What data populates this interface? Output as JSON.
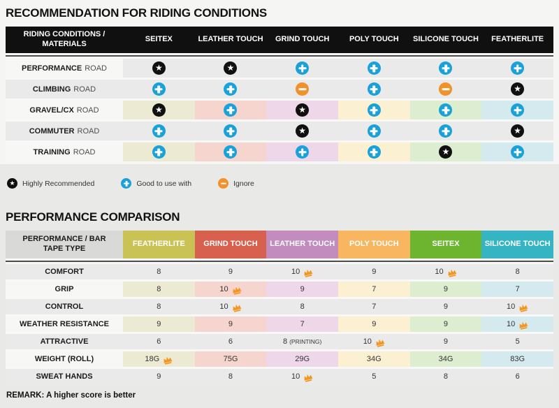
{
  "section1": {
    "title": "RECOMMENDATION FOR RIDING CONDITIONS",
    "table": {
      "header_label": "RIDING CONDITIONS / MATERIALS",
      "columns": [
        "SEITEX",
        "LEATHER TOUCH",
        "GRIND TOUCH",
        "POLY TOUCH",
        "SILICONE TOUCH",
        "FEATHERLITE"
      ],
      "column_tints": [
        "#edead3",
        "#f5d5cd",
        "#edd7e9",
        "#fcf0d2",
        "#ddedd0",
        "#d5eaee"
      ],
      "rows": [
        {
          "activity": "PERFORMANCE",
          "suffix": "ROAD",
          "tinted": false,
          "cells": [
            "star",
            "star",
            "plus",
            "plus",
            "plus",
            "plus"
          ]
        },
        {
          "activity": "CLIMBING",
          "suffix": "ROAD",
          "tinted": false,
          "cells": [
            "plus",
            "plus",
            "minus",
            "plus",
            "minus",
            "star"
          ]
        },
        {
          "activity": "GRAVEL/CX",
          "suffix": "ROAD",
          "tinted": true,
          "cells": [
            "star",
            "plus",
            "star",
            "plus",
            "plus",
            "plus"
          ]
        },
        {
          "activity": "COMMUTER",
          "suffix": "ROAD",
          "tinted": false,
          "cells": [
            "plus",
            "plus",
            "star",
            "plus",
            "plus",
            "star"
          ]
        },
        {
          "activity": "TRAINING",
          "suffix": "ROAD",
          "tinted": true,
          "cells": [
            "plus",
            "plus",
            "plus",
            "plus",
            "star",
            "plus"
          ]
        }
      ]
    },
    "legend": [
      {
        "icon": "star",
        "label": "Highly Recommended"
      },
      {
        "icon": "plus",
        "label": "Good to use with"
      },
      {
        "icon": "minus",
        "label": "Ignore"
      }
    ]
  },
  "section2": {
    "title": "PERFORMANCE COMPARISON",
    "table": {
      "header_label": "PERFORMANCE / BAR TAPE TYPE",
      "columns": [
        {
          "name": "FEATHERLITE",
          "color": "#c9c254",
          "tint": "#edead3"
        },
        {
          "name": "GRIND TOUCH",
          "color": "#d8604e",
          "tint": "#f5d5cd"
        },
        {
          "name": "LEATHER TOUCH",
          "color": "#c28dbe",
          "tint": "#edd7e9"
        },
        {
          "name": "POLY TOUCH",
          "color": "#f7b65f",
          "tint": "#fcf0d2"
        },
        {
          "name": "SEITEX",
          "color": "#6db52f",
          "tint": "#ddedd0"
        },
        {
          "name": "SILICONE TOUCH",
          "color": "#35b4c3",
          "tint": "#d5eaee"
        }
      ],
      "rows": [
        {
          "metric": "COMFORT",
          "tinted": false,
          "cells": [
            {
              "v": "8"
            },
            {
              "v": "9"
            },
            {
              "v": "10",
              "crown": true
            },
            {
              "v": "9"
            },
            {
              "v": "10",
              "crown": true
            },
            {
              "v": "8"
            }
          ]
        },
        {
          "metric": "GRIP",
          "tinted": true,
          "cells": [
            {
              "v": "8"
            },
            {
              "v": "10",
              "crown": true
            },
            {
              "v": "9"
            },
            {
              "v": "7"
            },
            {
              "v": "9"
            },
            {
              "v": "7"
            }
          ]
        },
        {
          "metric": "CONTROL",
          "tinted": false,
          "cells": [
            {
              "v": "8"
            },
            {
              "v": "10",
              "crown": true
            },
            {
              "v": "8"
            },
            {
              "v": "7"
            },
            {
              "v": "9"
            },
            {
              "v": "10",
              "crown": true
            }
          ]
        },
        {
          "metric": "WEATHER RESISTANCE",
          "tinted": true,
          "cells": [
            {
              "v": "9"
            },
            {
              "v": "9"
            },
            {
              "v": "7"
            },
            {
              "v": "9"
            },
            {
              "v": "9"
            },
            {
              "v": "10",
              "crown": true
            }
          ]
        },
        {
          "metric": "ATTRACTIVE",
          "tinted": false,
          "cells": [
            {
              "v": "6"
            },
            {
              "v": "6"
            },
            {
              "v": "8",
              "note": "(PRINTING)"
            },
            {
              "v": "10",
              "crown": true
            },
            {
              "v": "9"
            },
            {
              "v": "5"
            }
          ]
        },
        {
          "metric": "WEIGHT (ROLL)",
          "tinted": true,
          "cells": [
            {
              "v": "18G",
              "crown": true
            },
            {
              "v": "75G"
            },
            {
              "v": "29G"
            },
            {
              "v": "34G"
            },
            {
              "v": "34G"
            },
            {
              "v": "83G"
            }
          ]
        },
        {
          "metric": "SWEAT HANDS",
          "tinted": false,
          "cells": [
            {
              "v": "9"
            },
            {
              "v": "8"
            },
            {
              "v": "10",
              "crown": true
            },
            {
              "v": "5"
            },
            {
              "v": "8"
            },
            {
              "v": "6"
            }
          ]
        }
      ]
    },
    "remark": "REMARK: A higher score is better"
  },
  "colors": {
    "plus_circle": "#1aa2d8",
    "minus_circle": "#f0912c",
    "star_circle": "#101010",
    "crown": "#f5951e",
    "header_bar": "#101010",
    "gray_row": "#eaeaea",
    "light_row_label": "#f7f7f6"
  }
}
